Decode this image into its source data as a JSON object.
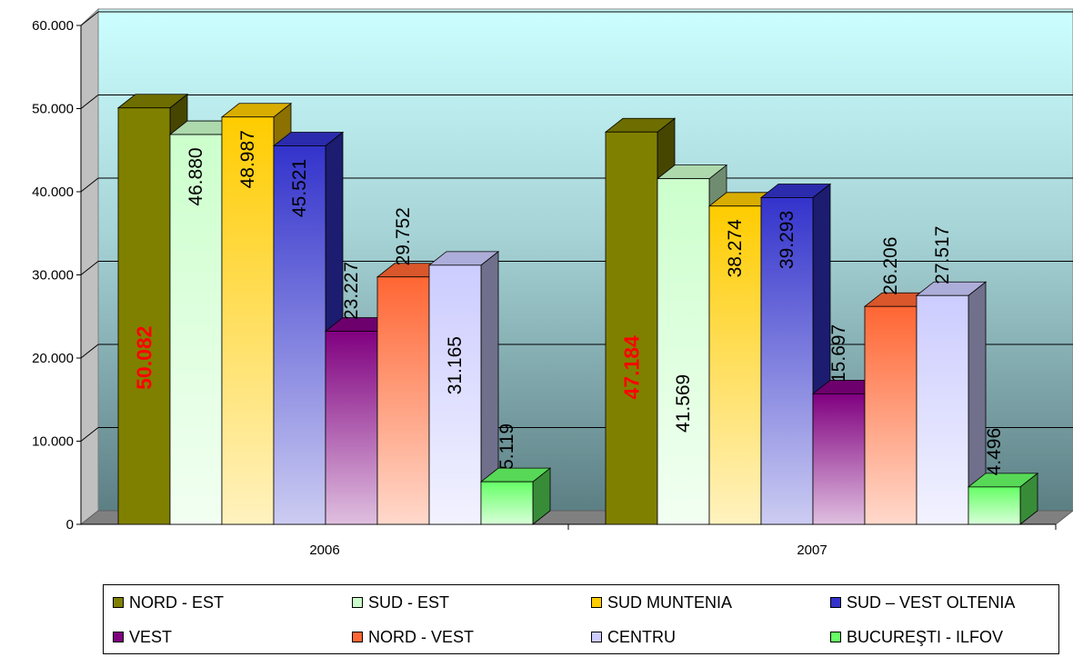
{
  "chart_data": {
    "type": "bar",
    "categories": [
      "2006",
      "2007"
    ],
    "y_ticks": [
      "0",
      "10.000",
      "20.000",
      "30.000",
      "40.000",
      "50.000",
      "60.000"
    ],
    "ylim": [
      0,
      60000
    ],
    "grid": true,
    "legend_position": "bottom",
    "series": [
      {
        "name": "NORD - EST",
        "values": [
          50082,
          47184
        ],
        "labels": [
          "50.082",
          "47.184"
        ],
        "color": "#808000",
        "highlight": true
      },
      {
        "name": "SUD - EST",
        "values": [
          46880,
          41569
        ],
        "labels": [
          "46.880",
          "41.569"
        ],
        "color": "#ccffcc"
      },
      {
        "name": "SUD MUNTENIA",
        "values": [
          48987,
          38274
        ],
        "labels": [
          "48.987",
          "38.274"
        ],
        "color": "#ffcc00"
      },
      {
        "name": "SUD – VEST OLTENIA",
        "values": [
          45521,
          39293
        ],
        "labels": [
          "45.521",
          "39.293"
        ],
        "color": "#3333cc"
      },
      {
        "name": "VEST",
        "values": [
          23227,
          15697
        ],
        "labels": [
          "23.227",
          "15.697"
        ],
        "color": "#800080"
      },
      {
        "name": "NORD - VEST",
        "values": [
          29752,
          26206
        ],
        "labels": [
          "29.752",
          "26.206"
        ],
        "color": "#ff6633"
      },
      {
        "name": "CENTRU",
        "values": [
          31165,
          27517
        ],
        "labels": [
          "31.165",
          "27.517"
        ],
        "color": "#ccccff"
      },
      {
        "name": "BUCUREŞTI - ILFOV",
        "values": [
          5119,
          4496
        ],
        "labels": [
          "5.119",
          "4.496"
        ],
        "color": "#66ff66"
      }
    ]
  }
}
